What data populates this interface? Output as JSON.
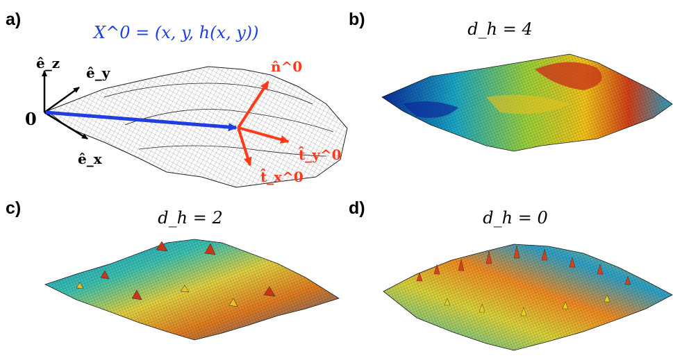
{
  "panels": [
    {
      "label": "a)"
    },
    {
      "label": "b)",
      "title": "d_h = 4"
    },
    {
      "label": "c)",
      "title": "d_h = 2"
    },
    {
      "label": "d)",
      "title": "d_h = 0"
    }
  ],
  "panel_a": {
    "position_vector": "X^0 = (x, y, h(x, y))",
    "origin_label": "0",
    "basis_labels": {
      "ez": "ê_z",
      "ey": "ê_y",
      "ex": "ê_x"
    },
    "local_frame_labels": {
      "n": "n̂^0",
      "ty": "t̂_y^0",
      "tx": "t̂_x^0"
    }
  },
  "colors": {
    "vector_blue": "#1f3ee0",
    "frame_red": "#ff3a1a",
    "mesh_line": "#222222"
  }
}
